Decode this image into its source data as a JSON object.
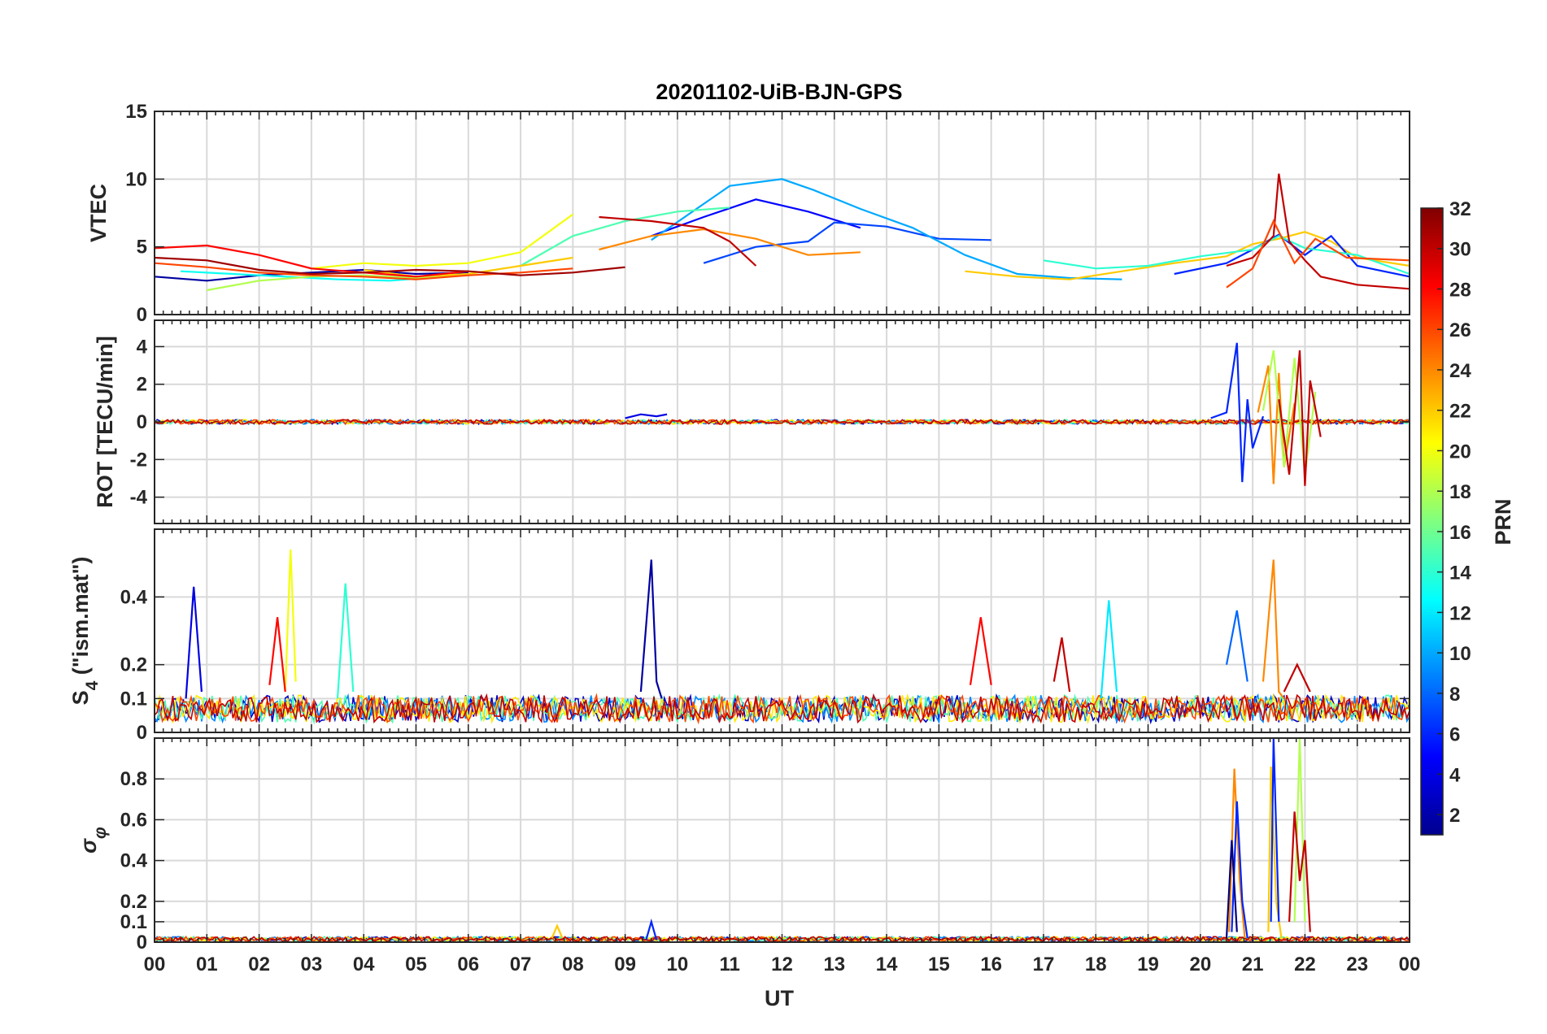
{
  "title": "20201102-UiB-BJN-GPS",
  "xlabel": "UT",
  "x_ticks": [
    "00",
    "01",
    "02",
    "03",
    "04",
    "05",
    "06",
    "07",
    "08",
    "09",
    "10",
    "11",
    "12",
    "13",
    "14",
    "15",
    "16",
    "17",
    "18",
    "19",
    "20",
    "21",
    "22",
    "23",
    "00"
  ],
  "colorbar": {
    "label": "PRN",
    "ticks": [
      2,
      4,
      6,
      8,
      10,
      12,
      14,
      16,
      18,
      20,
      22,
      24,
      26,
      28,
      30,
      32
    ],
    "range": [
      1,
      32
    ],
    "colormap": "jet"
  },
  "chart_data": [
    {
      "type": "line",
      "ylabel": "VTEC",
      "ylim": [
        0,
        15
      ],
      "yticks": [
        0,
        5,
        10,
        15
      ],
      "xlim": [
        0,
        24
      ],
      "series": [
        {
          "prn": 2,
          "x": [
            0,
            1,
            2,
            3,
            4,
            5,
            6
          ],
          "y": [
            2.8,
            2.5,
            2.9,
            3.1,
            3.3,
            3.0,
            3.1
          ]
        },
        {
          "prn": 5,
          "x": [
            9.5,
            10.5,
            11.5,
            12.5,
            13.5
          ],
          "y": [
            5.8,
            7.2,
            8.5,
            7.6,
            6.4
          ]
        },
        {
          "prn": 7,
          "x": [
            10.5,
            11.5,
            12.5,
            13.0,
            14.0,
            15.0,
            16.0
          ],
          "y": [
            3.8,
            5.0,
            5.4,
            6.8,
            6.5,
            5.6,
            5.5
          ]
        },
        {
          "prn": 10,
          "x": [
            9.5,
            11.0,
            12.0,
            12.6,
            13.5,
            14.5,
            15.5,
            16.5,
            17.5,
            18.5
          ],
          "y": [
            5.5,
            9.5,
            10.0,
            9.2,
            7.8,
            6.4,
            4.4,
            3.0,
            2.7,
            2.6
          ]
        },
        {
          "prn": 13,
          "x": [
            0.5,
            1.5,
            2.5,
            3.5,
            4.5,
            5.5
          ],
          "y": [
            3.2,
            3.0,
            2.8,
            2.6,
            2.5,
            2.8
          ]
        },
        {
          "prn": 15,
          "x": [
            7.0,
            8.0,
            9.0,
            10.0,
            11.0
          ],
          "y": [
            3.6,
            5.8,
            6.9,
            7.6,
            7.9
          ]
        },
        {
          "prn": 18,
          "x": [
            1.0,
            2.0,
            3.0,
            4.0,
            5.0,
            6.0
          ],
          "y": [
            1.8,
            2.5,
            2.8,
            2.9,
            2.7,
            3.0
          ]
        },
        {
          "prn": 20,
          "x": [
            3.0,
            4.0,
            5.0,
            6.0,
            7.0,
            8.0
          ],
          "y": [
            3.4,
            3.8,
            3.6,
            3.8,
            4.6,
            7.4
          ]
        },
        {
          "prn": 22,
          "x": [
            4.0,
            5.0,
            6.0,
            7.0,
            8.0
          ],
          "y": [
            3.3,
            2.8,
            3.0,
            3.6,
            4.2
          ]
        },
        {
          "prn": 24,
          "x": [
            8.5,
            9.5,
            10.5,
            11.5,
            12.5,
            13.5
          ],
          "y": [
            4.8,
            5.8,
            6.3,
            5.6,
            4.4,
            4.6
          ]
        },
        {
          "prn": 26,
          "x": [
            0,
            1,
            2,
            3,
            4,
            5,
            6,
            7,
            8
          ],
          "y": [
            3.8,
            3.5,
            3.1,
            2.9,
            2.8,
            2.6,
            2.9,
            3.1,
            3.4
          ]
        },
        {
          "prn": 28,
          "x": [
            0,
            1,
            2,
            3,
            4,
            5,
            6
          ],
          "y": [
            4.9,
            5.1,
            4.4,
            3.4,
            3.1,
            2.8,
            3.2
          ]
        },
        {
          "prn": 30,
          "x": [
            8.5,
            9.5,
            10.5,
            11.0,
            11.5
          ],
          "y": [
            7.2,
            6.9,
            6.4,
            5.4,
            3.6
          ]
        },
        {
          "prn": 31,
          "x": [
            0,
            1,
            2,
            3,
            4,
            5,
            6,
            7,
            8,
            9
          ],
          "y": [
            4.2,
            4.0,
            3.3,
            3.0,
            3.1,
            3.3,
            3.2,
            2.9,
            3.1,
            3.5
          ]
        },
        {
          "prn": 22,
          "x": [
            15.5,
            16.5,
            17.5,
            18.5,
            19.5,
            20.5,
            21.0,
            21.5,
            22.0,
            22.5,
            23.0,
            24.0
          ],
          "y": [
            3.2,
            2.8,
            2.6,
            3.2,
            3.8,
            4.3,
            5.2,
            5.6,
            6.1,
            5.4,
            4.2,
            3.6
          ]
        },
        {
          "prn": 6,
          "x": [
            19.5,
            20.5,
            21.0,
            21.5,
            22.0,
            22.5,
            23.0,
            24.0
          ],
          "y": [
            3.0,
            3.8,
            4.8,
            5.9,
            4.4,
            5.8,
            3.6,
            2.8
          ]
        },
        {
          "prn": 14,
          "x": [
            17.0,
            18.0,
            19.0,
            20.0,
            21.0,
            21.5,
            22.0,
            23.0,
            24.0
          ],
          "y": [
            4.0,
            3.4,
            3.6,
            4.3,
            4.8,
            5.8,
            4.9,
            4.4,
            3.0
          ]
        },
        {
          "prn": 30,
          "x": [
            20.5,
            21.0,
            21.4,
            21.5,
            21.7,
            22.0,
            22.3,
            23.0,
            24.0
          ],
          "y": [
            3.6,
            4.2,
            5.8,
            10.4,
            5.4,
            4.0,
            2.8,
            2.2,
            1.9
          ]
        },
        {
          "prn": 26,
          "x": [
            20.5,
            21.0,
            21.4,
            21.8,
            22.2,
            22.8,
            24.0
          ],
          "y": [
            2.0,
            3.4,
            6.9,
            3.8,
            5.6,
            4.2,
            4.0
          ]
        }
      ]
    },
    {
      "type": "line",
      "ylabel": "ROT [TECU/min]",
      "ylim": [
        -5.4,
        5.4
      ],
      "yticks": [
        -4,
        -2,
        0,
        2,
        4
      ],
      "xlim": [
        0,
        24
      ],
      "series": [
        {
          "prn": 6,
          "x": [
            20.2,
            20.5,
            20.7,
            20.8,
            20.9,
            21.0,
            21.2
          ],
          "y": [
            0.2,
            0.5,
            4.2,
            -3.2,
            1.2,
            -1.4,
            0.3
          ]
        },
        {
          "prn": 24,
          "x": [
            21.1,
            21.3,
            21.4,
            21.5,
            21.6,
            21.8
          ],
          "y": [
            0.5,
            3.0,
            -3.3,
            2.6,
            -2.4,
            1.0
          ]
        },
        {
          "prn": 18,
          "x": [
            21.2,
            21.4,
            21.6,
            21.8,
            22.0,
            22.2
          ],
          "y": [
            0.6,
            3.8,
            -2.4,
            3.4,
            -2.8,
            1.6
          ]
        },
        {
          "prn": 30,
          "x": [
            21.5,
            21.7,
            21.9,
            22.0,
            22.1,
            22.3
          ],
          "y": [
            1.2,
            -2.8,
            3.8,
            -3.4,
            2.2,
            -0.8
          ]
        },
        {
          "prn": 4,
          "x": [
            9.0,
            9.3,
            9.6,
            9.8
          ],
          "y": [
            0.2,
            0.4,
            0.3,
            0.4
          ]
        }
      ]
    },
    {
      "type": "line",
      "ylabel": "S4 (\"ism.mat\")",
      "ylim": [
        0,
        0.6
      ],
      "yticks": [
        0,
        0.1,
        0.2,
        0.4
      ],
      "xlim": [
        0,
        24
      ],
      "series": [
        {
          "prn": 20,
          "x": [
            2.5,
            2.6,
            2.7
          ],
          "y": [
            0.12,
            0.54,
            0.15
          ]
        },
        {
          "prn": 2,
          "x": [
            9.3,
            9.5,
            9.6,
            9.7
          ],
          "y": [
            0.12,
            0.51,
            0.15,
            0.1
          ]
        },
        {
          "prn": 24,
          "x": [
            21.2,
            21.4,
            21.5,
            21.6
          ],
          "y": [
            0.15,
            0.51,
            0.12,
            0.1
          ]
        },
        {
          "prn": 4,
          "x": [
            0.6,
            0.75,
            0.9
          ],
          "y": [
            0.1,
            0.43,
            0.12
          ]
        },
        {
          "prn": 14,
          "x": [
            3.5,
            3.65,
            3.8
          ],
          "y": [
            0.1,
            0.44,
            0.12
          ]
        },
        {
          "prn": 12,
          "x": [
            18.1,
            18.25,
            18.4
          ],
          "y": [
            0.1,
            0.39,
            0.12
          ]
        },
        {
          "prn": 28,
          "x": [
            2.2,
            2.35,
            2.5
          ],
          "y": [
            0.14,
            0.34,
            0.12
          ]
        },
        {
          "prn": 28,
          "x": [
            15.6,
            15.8,
            16.0
          ],
          "y": [
            0.14,
            0.34,
            0.14
          ]
        },
        {
          "prn": 30,
          "x": [
            17.2,
            17.35,
            17.5
          ],
          "y": [
            0.15,
            0.28,
            0.12
          ]
        },
        {
          "prn": 8,
          "x": [
            20.5,
            20.7,
            20.9
          ],
          "y": [
            0.2,
            0.36,
            0.15
          ]
        },
        {
          "prn": 30,
          "x": [
            21.6,
            21.85,
            22.1
          ],
          "y": [
            0.12,
            0.2,
            0.12
          ]
        }
      ]
    },
    {
      "type": "line",
      "ylabel": "σφ",
      "ylim": [
        0,
        1.0
      ],
      "yticks": [
        0,
        0.1,
        0.2,
        0.4,
        0.6,
        0.8
      ],
      "xlim": [
        0,
        24
      ],
      "series": [
        {
          "prn": 24,
          "x": [
            20.55,
            20.65,
            20.75,
            20.85
          ],
          "y": [
            0.05,
            0.85,
            0.3,
            0.02
          ]
        },
        {
          "prn": 6,
          "x": [
            20.6,
            20.7,
            20.8,
            20.9
          ],
          "y": [
            0.05,
            0.69,
            0.2,
            0.02
          ]
        },
        {
          "prn": 1,
          "x": [
            20.5,
            20.6,
            20.7
          ],
          "y": [
            0.02,
            0.5,
            0.05
          ]
        },
        {
          "prn": 22,
          "x": [
            21.3,
            21.35,
            21.45,
            21.55
          ],
          "y": [
            0.05,
            0.86,
            0.2,
            0.02
          ]
        },
        {
          "prn": 6,
          "x": [
            21.35,
            21.4,
            21.5
          ],
          "y": [
            0.1,
            1.0,
            0.1
          ]
        },
        {
          "prn": 18,
          "x": [
            21.8,
            21.9,
            22.0
          ],
          "y": [
            0.1,
            1.0,
            0.1
          ]
        },
        {
          "prn": 30,
          "x": [
            21.7,
            21.8,
            21.9,
            22.0,
            22.1
          ],
          "y": [
            0.1,
            0.64,
            0.3,
            0.5,
            0.05
          ]
        },
        {
          "prn": 6,
          "x": [
            9.4,
            9.5,
            9.6
          ],
          "y": [
            0.01,
            0.1,
            0.01
          ]
        },
        {
          "prn": 22,
          "x": [
            7.6,
            7.7,
            7.8
          ],
          "y": [
            0.02,
            0.08,
            0.02
          ]
        }
      ]
    }
  ]
}
